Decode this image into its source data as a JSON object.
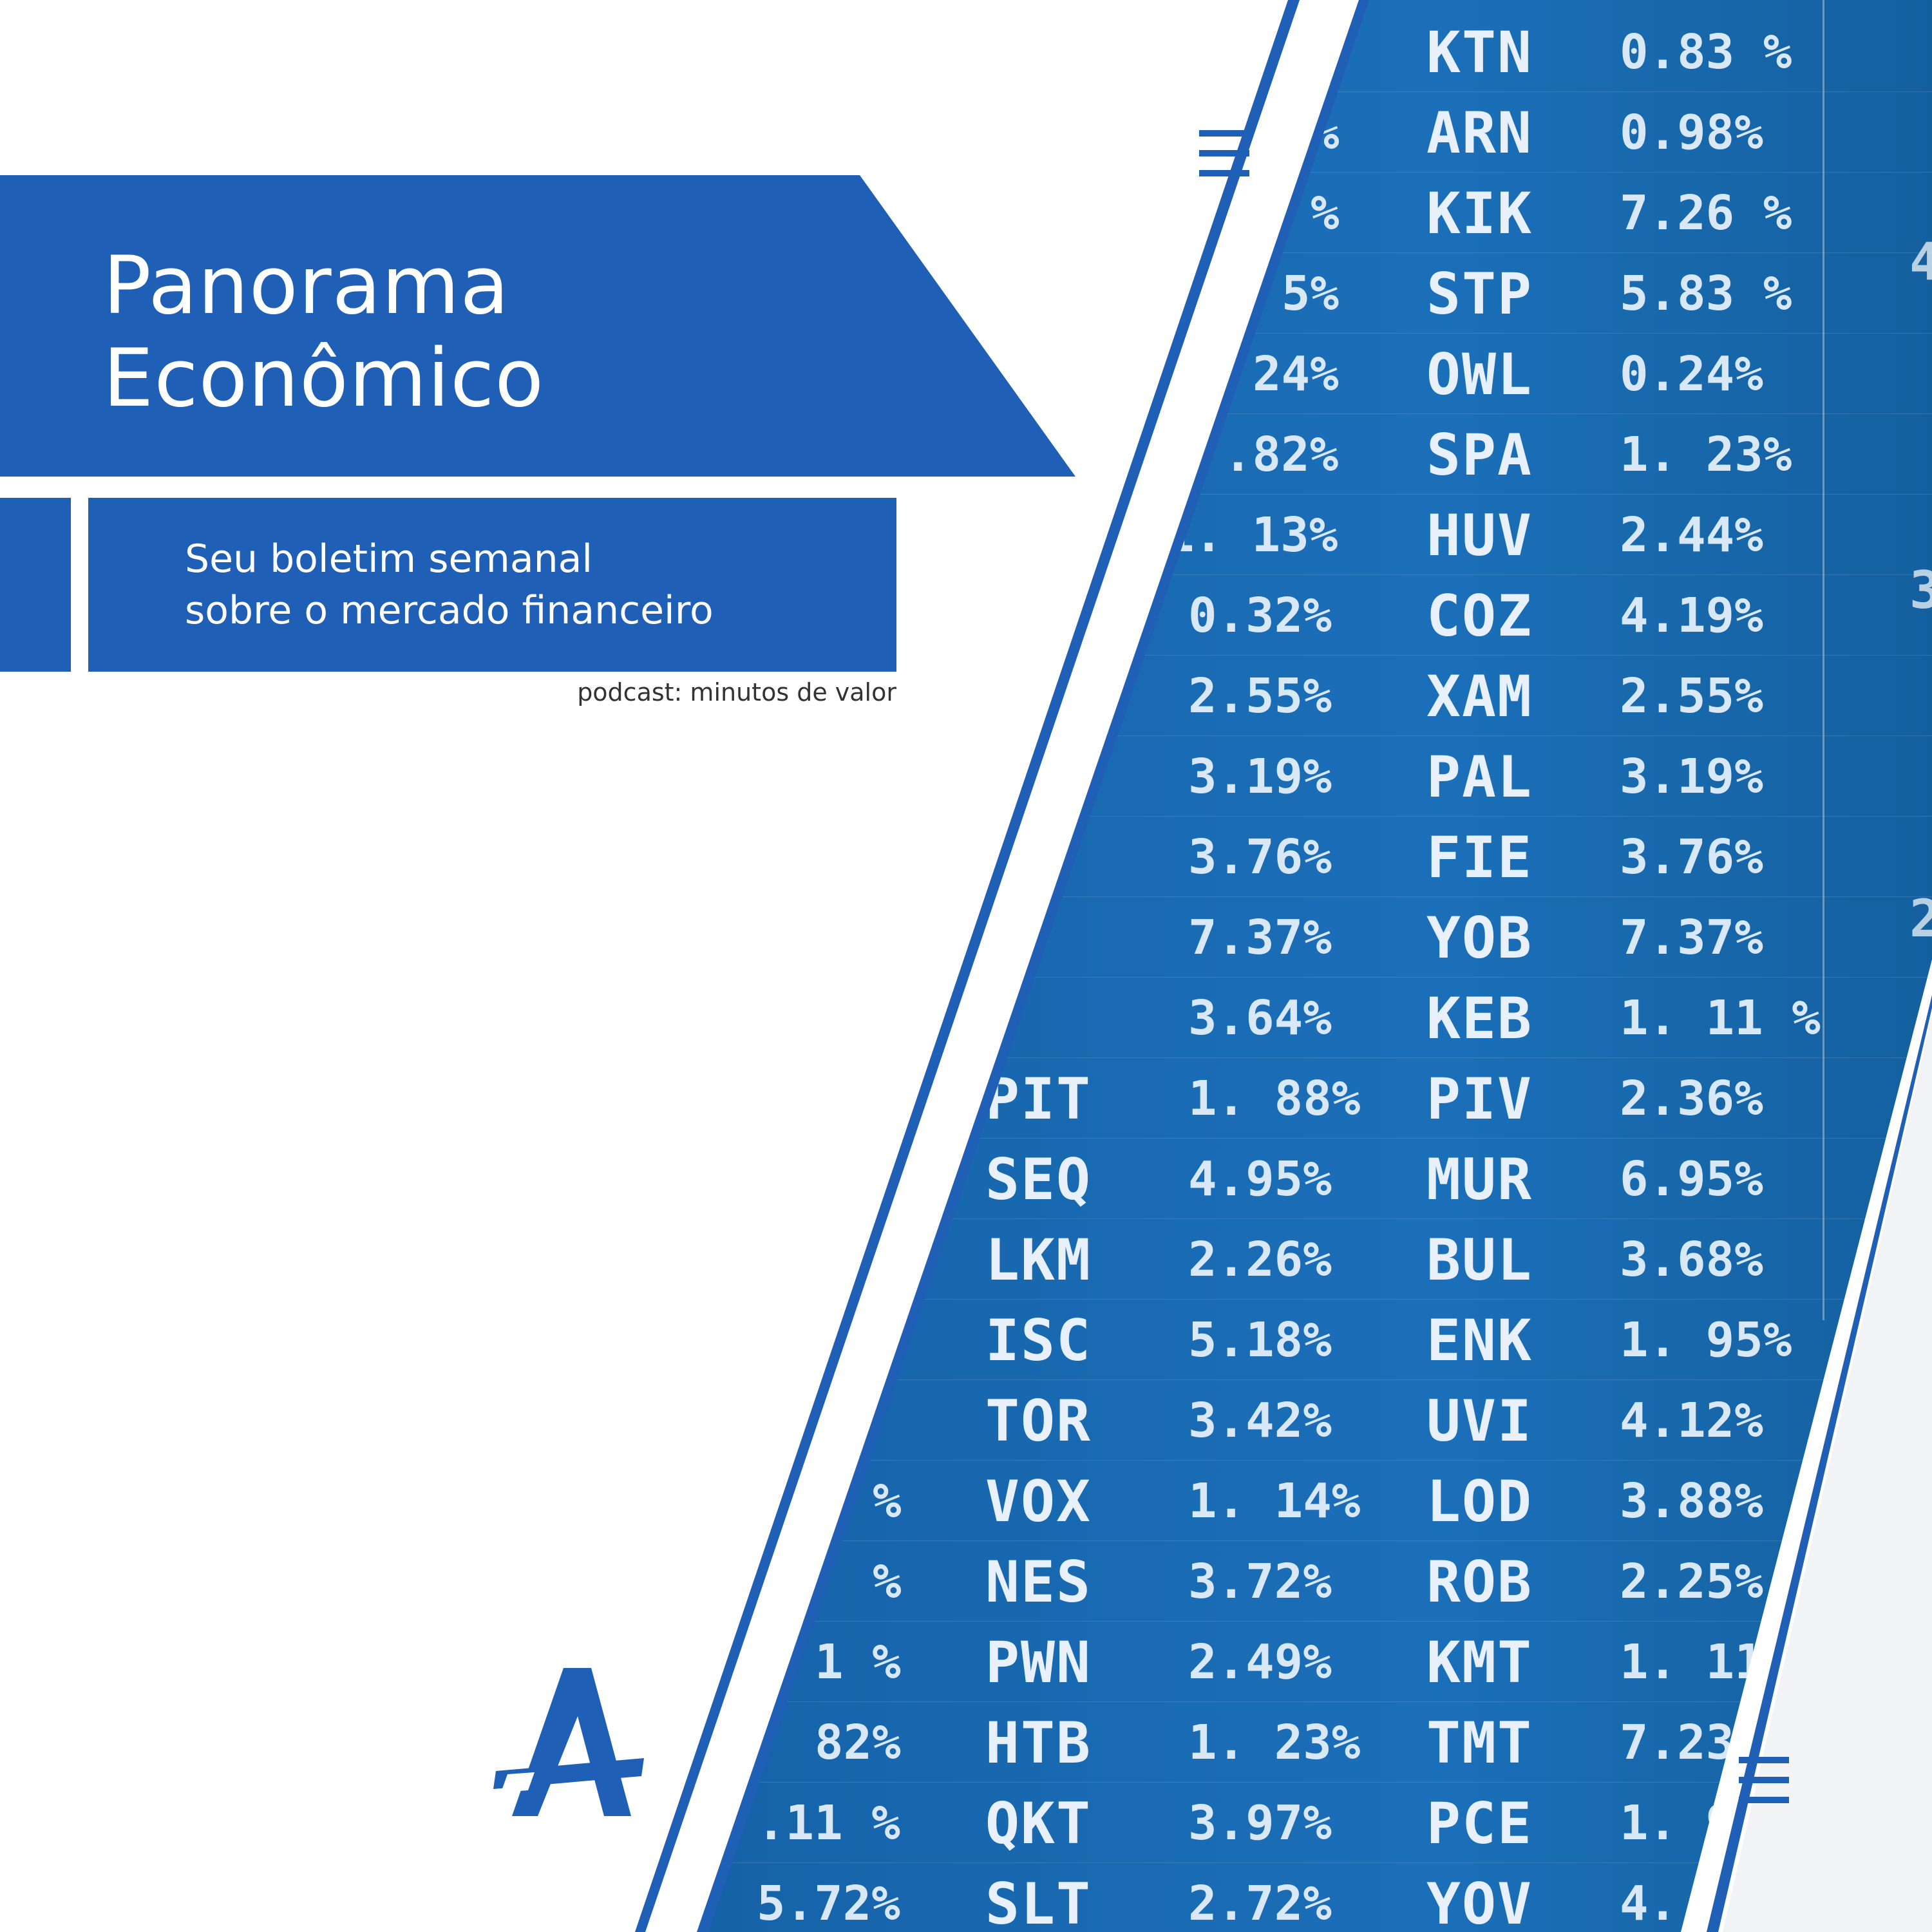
{
  "banner": {
    "title_line_1": "Panorama",
    "title_line_2": "Econômico",
    "subtitle_line_1": "Seu boletim semanal",
    "subtitle_line_2": "sobre o mercado financeiro",
    "podcast_label": "podcast: minutos de valor"
  },
  "colors": {
    "brand_blue": "#1f5fb5",
    "board_blue": "#1766ad",
    "text_white": "#ffffff"
  },
  "icons": {
    "logo": "stylized-letter-a-logo",
    "menu": "hamburger-lines-icon"
  },
  "ticker": {
    "col_a": [
      {
        "symbol": "",
        "value": "0.32%"
      },
      {
        "symbol": "",
        "value": "2.55%"
      },
      {
        "symbol": "",
        "value": "3.19%"
      },
      {
        "symbol": "",
        "value": "3.76%"
      },
      {
        "symbol": "",
        "value": "7.37%"
      },
      {
        "symbol": "",
        "value": "3.64%"
      },
      {
        "symbol": "PIT",
        "value": "1. 88%"
      },
      {
        "symbol": "SEQ",
        "value": "4.95%"
      },
      {
        "symbol": "LKM",
        "value": "2.26%"
      },
      {
        "symbol": "ISC",
        "value": "5.18%"
      },
      {
        "symbol": "TOR",
        "value": "3.42%"
      },
      {
        "symbol": "VOX",
        "value": "1. 14%"
      },
      {
        "symbol": "NES",
        "value": "3.72%"
      },
      {
        "symbol": "PWN",
        "value": "2.49%"
      },
      {
        "symbol": "HTB",
        "value": "1. 23%"
      },
      {
        "symbol": "QKT",
        "value": "3.97%"
      },
      {
        "symbol": "SLT",
        "value": "2.72%"
      }
    ],
    "col_b": [
      {
        "symbol": "KTN",
        "value": "0.83 %"
      },
      {
        "symbol": "ARN",
        "value": "0.98%"
      },
      {
        "symbol": "KIK",
        "value": "7.26 %"
      },
      {
        "symbol": "STP",
        "value": "5.83 %"
      },
      {
        "symbol": "OWL",
        "value": "0.24%"
      },
      {
        "symbol": "SPA",
        "value": "1. 23%"
      },
      {
        "symbol": "HUV",
        "value": "2.44%"
      },
      {
        "symbol": "COZ",
        "value": "4.19%"
      },
      {
        "symbol": "XAM",
        "value": "2.55%"
      },
      {
        "symbol": "PAL",
        "value": "3.19%"
      },
      {
        "symbol": "FIE",
        "value": "3.76%"
      },
      {
        "symbol": "YOB",
        "value": "7.37%"
      },
      {
        "symbol": "KEB",
        "value": "1. 11 %"
      },
      {
        "symbol": "PIV",
        "value": "2.36%"
      },
      {
        "symbol": "MUR",
        "value": "6.95%"
      },
      {
        "symbol": "BUL",
        "value": "3.68%"
      },
      {
        "symbol": "ENK",
        "value": "1. 95%"
      },
      {
        "symbol": "UVI",
        "value": "4.12%"
      },
      {
        "symbol": "LOD",
        "value": "3.88%"
      },
      {
        "symbol": "ROB",
        "value": "2.25%"
      },
      {
        "symbol": "KMT",
        "value": "1. 11"
      },
      {
        "symbol": "TMT",
        "value": "7.23"
      },
      {
        "symbol": "PCE",
        "value": "1. 9"
      },
      {
        "symbol": "YOV",
        "value": "4."
      }
    ],
    "col_a_partial_values": [
      "%",
      "%",
      "5%",
      "24%",
      ".82%",
      "1. 13%"
    ],
    "col_left_partial_values": [
      "%",
      "%",
      "1 %",
      "82%",
      ".11 %",
      "5.72%"
    ],
    "edge_digits": [
      "4",
      "3",
      "2"
    ]
  }
}
